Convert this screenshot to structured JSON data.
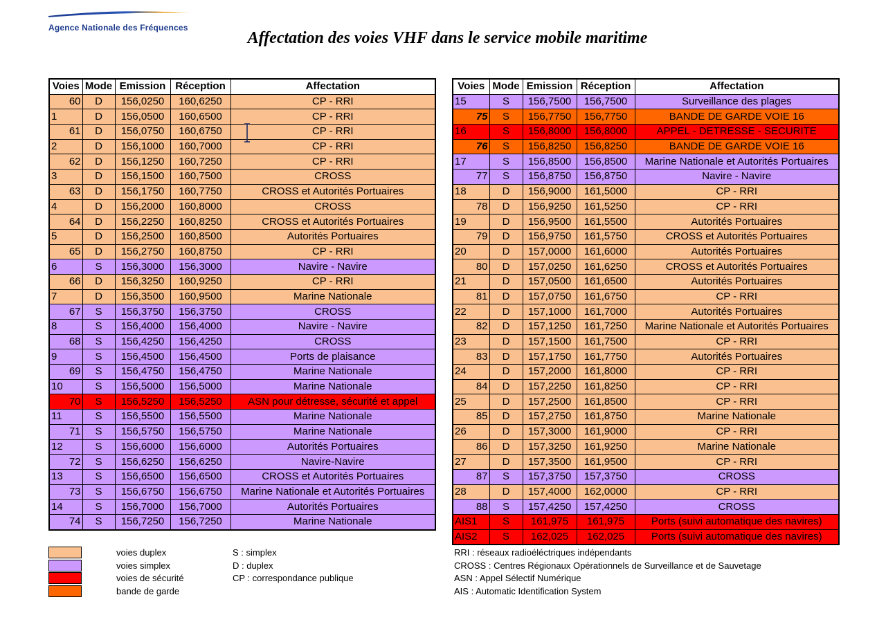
{
  "header": {
    "org_name": "Agence Nationale des Fréquences",
    "title": "Affectation des voies VHF dans le service mobile maritime"
  },
  "columns": [
    "Voies",
    "Mode",
    "Emission",
    "Réception",
    "Affectation"
  ],
  "colors": {
    "duplex": "#fac090",
    "simplex": "#cc99ff",
    "securite": "#ff0000",
    "garde": "#ff6600"
  },
  "left_rows": [
    {
      "voie": "60",
      "align": "right",
      "mode": "D",
      "emission": "156,0250",
      "reception": "160,6250",
      "affectation": "CP - RRI",
      "cat": "duplex"
    },
    {
      "voie": "1",
      "align": "left",
      "mode": "D",
      "emission": "156,0500",
      "reception": "160,6500",
      "affectation": "CP - RRI",
      "cat": "duplex"
    },
    {
      "voie": "61",
      "align": "right",
      "mode": "D",
      "emission": "156,0750",
      "reception": "160,6750",
      "affectation": "CP - RRI",
      "cat": "duplex"
    },
    {
      "voie": "2",
      "align": "left",
      "mode": "D",
      "emission": "156,1000",
      "reception": "160,7000",
      "affectation": "CP - RRI",
      "cat": "duplex"
    },
    {
      "voie": "62",
      "align": "right",
      "mode": "D",
      "emission": "156,1250",
      "reception": "160,7250",
      "affectation": "CP - RRI",
      "cat": "duplex"
    },
    {
      "voie": "3",
      "align": "left",
      "mode": "D",
      "emission": "156,1500",
      "reception": "160,7500",
      "affectation": "CROSS",
      "cat": "duplex"
    },
    {
      "voie": "63",
      "align": "right",
      "mode": "D",
      "emission": "156,1750",
      "reception": "160,7750",
      "affectation": "CROSS et Autorités Portuaires",
      "cat": "duplex"
    },
    {
      "voie": "4",
      "align": "left",
      "mode": "D",
      "emission": "156,2000",
      "reception": "160,8000",
      "affectation": "CROSS",
      "cat": "duplex"
    },
    {
      "voie": "64",
      "align": "right",
      "mode": "D",
      "emission": "156,2250",
      "reception": "160,8250",
      "affectation": "CROSS et Autorités Portuaires",
      "cat": "duplex"
    },
    {
      "voie": "5",
      "align": "left",
      "mode": "D",
      "emission": "156,2500",
      "reception": "160,8500",
      "affectation": "Autorités Portuaires",
      "cat": "duplex"
    },
    {
      "voie": "65",
      "align": "right",
      "mode": "D",
      "emission": "156,2750",
      "reception": "160,8750",
      "affectation": "CP - RRI",
      "cat": "duplex"
    },
    {
      "voie": "6",
      "align": "left",
      "mode": "S",
      "emission": "156,3000",
      "reception": "156,3000",
      "affectation": "Navire - Navire",
      "cat": "simplex"
    },
    {
      "voie": "66",
      "align": "right",
      "mode": "D",
      "emission": "156,3250",
      "reception": "160,9250",
      "affectation": "CP - RRI",
      "cat": "duplex"
    },
    {
      "voie": "7",
      "align": "left",
      "mode": "D",
      "emission": "156,3500",
      "reception": "160,9500",
      "affectation": "Marine Nationale",
      "cat": "duplex"
    },
    {
      "voie": "67",
      "align": "right",
      "mode": "S",
      "emission": "156,3750",
      "reception": "156,3750",
      "affectation": "CROSS",
      "cat": "simplex"
    },
    {
      "voie": "8",
      "align": "left",
      "mode": "S",
      "emission": "156,4000",
      "reception": "156,4000",
      "affectation": "Navire - Navire",
      "cat": "simplex"
    },
    {
      "voie": "68",
      "align": "right",
      "mode": "S",
      "emission": "156,4250",
      "reception": "156,4250",
      "affectation": "CROSS",
      "cat": "simplex"
    },
    {
      "voie": "9",
      "align": "left",
      "mode": "S",
      "emission": "156,4500",
      "reception": "156,4500",
      "affectation": "Ports de plaisance",
      "cat": "simplex"
    },
    {
      "voie": "69",
      "align": "right",
      "mode": "S",
      "emission": "156,4750",
      "reception": "156,4750",
      "affectation": "Marine Nationale",
      "cat": "simplex"
    },
    {
      "voie": "10",
      "align": "left",
      "mode": "S",
      "emission": "156,5000",
      "reception": "156,5000",
      "affectation": "Marine Nationale",
      "cat": "simplex"
    },
    {
      "voie": "70",
      "align": "right",
      "mode": "S",
      "emission": "156,5250",
      "reception": "156,5250",
      "affectation": "ASN pour détresse, sécurité et appel",
      "cat": "securite"
    },
    {
      "voie": "11",
      "align": "left",
      "mode": "S",
      "emission": "156,5500",
      "reception": "156,5500",
      "affectation": "Marine Nationale",
      "cat": "simplex"
    },
    {
      "voie": "71",
      "align": "right",
      "mode": "S",
      "emission": "156,5750",
      "reception": "156,5750",
      "affectation": "Marine Nationale",
      "cat": "simplex"
    },
    {
      "voie": "12",
      "align": "left",
      "mode": "S",
      "emission": "156,6000",
      "reception": "156,6000",
      "affectation": "Autorités Portuaires",
      "cat": "simplex"
    },
    {
      "voie": "72",
      "align": "right",
      "mode": "S",
      "emission": "156,6250",
      "reception": "156,6250",
      "affectation": "Navire-Navire",
      "cat": "simplex"
    },
    {
      "voie": "13",
      "align": "left",
      "mode": "S",
      "emission": "156,6500",
      "reception": "156,6500",
      "affectation": "CROSS et Autorités Portuaires",
      "cat": "simplex"
    },
    {
      "voie": "73",
      "align": "right",
      "mode": "S",
      "emission": "156,6750",
      "reception": "156,6750",
      "affectation": "Marine Nationale et Autorités Portuaires",
      "cat": "simplex"
    },
    {
      "voie": "14",
      "align": "left",
      "mode": "S",
      "emission": "156,7000",
      "reception": "156,7000",
      "affectation": "Autorités Portuaires",
      "cat": "simplex"
    },
    {
      "voie": "74",
      "align": "right",
      "mode": "S",
      "emission": "156,7250",
      "reception": "156,7250",
      "affectation": "Marine Nationale",
      "cat": "simplex"
    }
  ],
  "right_rows": [
    {
      "voie": "15",
      "align": "left",
      "mode": "S",
      "emission": "156,7500",
      "reception": "156,7500",
      "affectation": "Surveillance des plages",
      "cat": "simplex"
    },
    {
      "voie": "75",
      "align": "right",
      "bold": true,
      "mode": "S",
      "emission": "156,7750",
      "reception": "156,7750",
      "affectation": "BANDE DE GARDE VOIE 16",
      "cat": "garde"
    },
    {
      "voie": "16",
      "align": "left",
      "mode": "S",
      "emission": "156,8000",
      "reception": "156,8000",
      "affectation": "APPEL - DETRESSE - SECURITE",
      "cat": "securite"
    },
    {
      "voie": "76",
      "align": "right",
      "bold": true,
      "mode": "S",
      "emission": "156,8250",
      "reception": "156,8250",
      "affectation": "BANDE DE GARDE VOIE 16",
      "cat": "garde"
    },
    {
      "voie": "17",
      "align": "left",
      "mode": "S",
      "emission": "156,8500",
      "reception": "156,8500",
      "affectation": "Marine Nationale et Autorités Portuaires",
      "cat": "simplex"
    },
    {
      "voie": "77",
      "align": "right",
      "mode": "S",
      "emission": "156,8750",
      "reception": "156,8750",
      "affectation": "Navire - Navire",
      "cat": "simplex"
    },
    {
      "voie": "18",
      "align": "left",
      "mode": "D",
      "emission": "156,9000",
      "reception": "161,5000",
      "affectation": "CP - RRI",
      "cat": "duplex"
    },
    {
      "voie": "78",
      "align": "right",
      "mode": "D",
      "emission": "156,9250",
      "reception": "161,5250",
      "affectation": "CP - RRI",
      "cat": "duplex"
    },
    {
      "voie": "19",
      "align": "left",
      "mode": "D",
      "emission": "156,9500",
      "reception": "161,5500",
      "affectation": "Autorités Portuaires",
      "cat": "duplex"
    },
    {
      "voie": "79",
      "align": "right",
      "mode": "D",
      "emission": "156,9750",
      "reception": "161,5750",
      "affectation": "CROSS et Autorités Portuaires",
      "cat": "duplex"
    },
    {
      "voie": "20",
      "align": "left",
      "mode": "D",
      "emission": "157,0000",
      "reception": "161,6000",
      "affectation": "Autorités Portuaires",
      "cat": "duplex"
    },
    {
      "voie": "80",
      "align": "right",
      "mode": "D",
      "emission": "157,0250",
      "reception": "161,6250",
      "affectation": "CROSS et Autorités Portuaires",
      "cat": "duplex"
    },
    {
      "voie": "21",
      "align": "left",
      "mode": "D",
      "emission": "157,0500",
      "reception": "161,6500",
      "affectation": "Autorités Portuaires",
      "cat": "duplex"
    },
    {
      "voie": "81",
      "align": "right",
      "mode": "D",
      "emission": "157,0750",
      "reception": "161,6750",
      "affectation": "CP - RRI",
      "cat": "duplex"
    },
    {
      "voie": "22",
      "align": "left",
      "mode": "D",
      "emission": "157,1000",
      "reception": "161,7000",
      "affectation": "Autorités Portuaires",
      "cat": "duplex"
    },
    {
      "voie": "82",
      "align": "right",
      "mode": "D",
      "emission": "157,1250",
      "reception": "161,7250",
      "affectation": "Marine Nationale et Autorités Portuaires",
      "cat": "duplex"
    },
    {
      "voie": "23",
      "align": "left",
      "mode": "D",
      "emission": "157,1500",
      "reception": "161,7500",
      "affectation": "CP - RRI",
      "cat": "duplex"
    },
    {
      "voie": "83",
      "align": "right",
      "mode": "D",
      "emission": "157,1750",
      "reception": "161,7750",
      "affectation": "Autorités Portuaires",
      "cat": "duplex"
    },
    {
      "voie": "24",
      "align": "left",
      "mode": "D",
      "emission": "157,2000",
      "reception": "161,8000",
      "affectation": "CP - RRI",
      "cat": "duplex"
    },
    {
      "voie": "84",
      "align": "right",
      "mode": "D",
      "emission": "157,2250",
      "reception": "161,8250",
      "affectation": "CP - RRI",
      "cat": "duplex"
    },
    {
      "voie": "25",
      "align": "left",
      "mode": "D",
      "emission": "157,2500",
      "reception": "161,8500",
      "affectation": "CP - RRI",
      "cat": "duplex"
    },
    {
      "voie": "85",
      "align": "right",
      "mode": "D",
      "emission": "157,2750",
      "reception": "161,8750",
      "affectation": "Marine Nationale",
      "cat": "duplex"
    },
    {
      "voie": "26",
      "align": "left",
      "mode": "D",
      "emission": "157,3000",
      "reception": "161,9000",
      "affectation": "CP - RRI",
      "cat": "duplex"
    },
    {
      "voie": "86",
      "align": "right",
      "mode": "D",
      "emission": "157,3250",
      "reception": "161,9250",
      "affectation": "Marine Nationale",
      "cat": "duplex"
    },
    {
      "voie": "27",
      "align": "left",
      "mode": "D",
      "emission": "157,3500",
      "reception": "161,9500",
      "affectation": "CP - RRI",
      "cat": "duplex"
    },
    {
      "voie": "87",
      "align": "right",
      "mode": "S",
      "emission": "157,3750",
      "reception": "157,3750",
      "affectation": "CROSS",
      "cat": "simplex"
    },
    {
      "voie": "28",
      "align": "left",
      "mode": "D",
      "emission": "157,4000",
      "reception": "162,0000",
      "affectation": "CP - RRI",
      "cat": "duplex"
    },
    {
      "voie": "88",
      "align": "right",
      "mode": "S",
      "emission": "157,4250",
      "reception": "157,4250",
      "affectation": "CROSS",
      "cat": "simplex"
    },
    {
      "voie": "AIS1",
      "align": "left",
      "mode": "S",
      "emission": "161,975",
      "reception": "161,975",
      "affectation": "Ports (suivi automatique des navires)",
      "cat": "securite"
    },
    {
      "voie": "AIS2",
      "align": "left",
      "mode": "S",
      "emission": "162,025",
      "reception": "162,025",
      "affectation": "Ports (suivi automatique des navires)",
      "cat": "securite"
    }
  ],
  "legend": {
    "swatches": [
      {
        "label": "voies duplex",
        "cat": "duplex"
      },
      {
        "label": "voies simplex",
        "cat": "simplex"
      },
      {
        "label": "voies de sécurité",
        "cat": "securite"
      },
      {
        "label": "bande de garde",
        "cat": "garde"
      }
    ],
    "modes": [
      "S : simplex",
      "D : duplex",
      "CP : correspondance publique"
    ],
    "abbreviations": [
      "RRI : réseaux radioéléctriques indépendants",
      "CROSS : Centres Régionaux Opérationnels de Surveillance et de Sauvetage",
      "ASN : Appel Sélectif Numérique",
      "AIS : Automatic Identification System"
    ]
  }
}
